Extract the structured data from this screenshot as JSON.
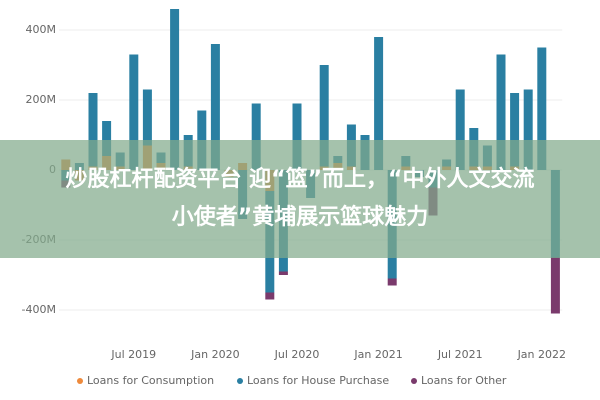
{
  "chart_data": {
    "type": "stacked_bar",
    "categories": [
      null,
      null,
      null,
      null,
      null,
      "Jul 2019",
      null,
      null,
      null,
      null,
      null,
      "Jan 2020",
      null,
      null,
      null,
      null,
      null,
      "Jul 2020",
      null,
      null,
      null,
      null,
      null,
      "Jan 2021",
      null,
      null,
      null,
      null,
      null,
      "Jul 2021",
      null,
      null,
      null,
      null,
      null,
      "Jan 2022",
      null
    ],
    "series": [
      {
        "name": "Loans for Consumption",
        "color": "#ee8a3c",
        "values": [
          30,
          -30,
          10,
          40,
          10,
          0,
          70,
          20,
          0,
          10,
          0,
          0,
          -20,
          20,
          0,
          -60,
          0,
          0,
          0,
          10,
          20,
          10,
          0,
          0,
          0,
          10,
          0,
          0,
          10,
          0,
          10,
          10,
          0,
          10,
          0,
          0,
          0
        ]
      },
      {
        "name": "Loans for House Purchase",
        "color": "#2a7fa2",
        "values": [
          -30,
          20,
          210,
          100,
          40,
          330,
          160,
          30,
          460,
          90,
          170,
          360,
          0,
          -140,
          190,
          -290,
          -290,
          190,
          -80,
          290,
          20,
          120,
          100,
          380,
          -310,
          30,
          -20,
          -50,
          20,
          230,
          110,
          60,
          330,
          210,
          230,
          350,
          -250
        ]
      },
      {
        "name": "Loans for Other",
        "color": "#7a3a6c",
        "values": [
          -20,
          0,
          0,
          0,
          0,
          0,
          0,
          0,
          0,
          0,
          0,
          0,
          0,
          0,
          0,
          -20,
          -10,
          0,
          0,
          0,
          0,
          0,
          0,
          0,
          -20,
          0,
          0,
          -80,
          0,
          0,
          0,
          0,
          0,
          0,
          0,
          0,
          -160
        ]
      }
    ],
    "ylim": [
      -480,
      480
    ],
    "yticks": [
      {
        "value": -400,
        "label": "-400M"
      },
      {
        "value": -200,
        "label": "-200M"
      },
      0,
      {
        "value": 200,
        "label": "200M"
      },
      {
        "value": 400,
        "label": "400M"
      }
    ],
    "grid": true
  },
  "overlay_text": "炒股杠杆配资平台 迎“篮”而上，“中外人文交流小使者”黄埔展示篮球魅力"
}
